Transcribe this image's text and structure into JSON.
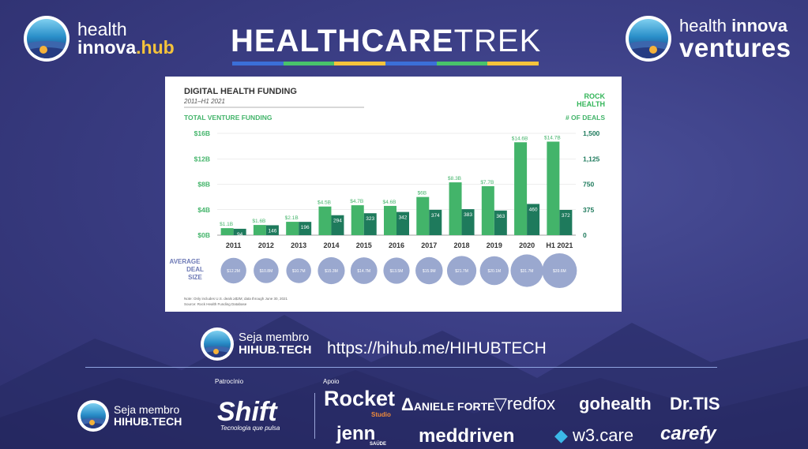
{
  "header": {
    "left_logo": {
      "line1": "health",
      "line2_a": "innova",
      "line2_b": ".hub"
    },
    "title_bold": "HEALTHCARE",
    "title_light": "TREK",
    "title_bar_colors": [
      "#3b6fd8",
      "#48c36b",
      "#f5c33b",
      "#3b6fd8",
      "#48c36b",
      "#f5c33b"
    ],
    "right_logo": {
      "line1_a": "health ",
      "line1_b": "innova",
      "line2": "ventures"
    }
  },
  "chart_data": {
    "type": "bar",
    "title": "DIGITAL HEALTH FUNDING",
    "subtitle": "2011–H1 2021",
    "brand": [
      "ROCK",
      "HEALTH"
    ],
    "left_axis_label": "TOTAL VENTURE FUNDING",
    "right_axis_label": "# OF DEALS",
    "categories": [
      "2011",
      "2012",
      "2013",
      "2014",
      "2015",
      "2016",
      "2017",
      "2018",
      "2019",
      "2020",
      "H1 2021"
    ],
    "series": [
      {
        "name": "Total venture funding",
        "values": [
          1.1,
          1.6,
          2.1,
          4.5,
          4.7,
          4.6,
          6.0,
          8.3,
          7.7,
          14.6,
          14.7
        ],
        "labels": [
          "$1.1B",
          "$1.6B",
          "$2.1B",
          "$4.5B",
          "$4.7B",
          "$4.6B",
          "$6B",
          "$8.3B",
          "$7.7B",
          "$14.6B",
          "$14.7B"
        ],
        "color": "#43b46a"
      },
      {
        "name": "# of deals",
        "values": [
          94,
          146,
          196,
          294,
          323,
          342,
          374,
          383,
          363,
          460,
          372
        ],
        "color": "#1e7a5c"
      }
    ],
    "left_ticks": [
      "$0B",
      "$4B",
      "$8B",
      "$12B",
      "$16B"
    ],
    "right_ticks": [
      "0",
      "375",
      "750",
      "1,125",
      "1,500"
    ],
    "ylim_left": [
      0,
      16
    ],
    "ylim_right": [
      0,
      1500
    ],
    "avg_label": [
      "AVERAGE",
      "DEAL",
      "SIZE"
    ],
    "avg_deal_size": {
      "values": [
        12.2,
        10.8,
        10.7,
        15.3,
        14.7,
        13.5,
        15.9,
        21.7,
        20.1,
        31.7,
        39.6
      ],
      "labels": [
        "$12.2M",
        "$10.8M",
        "$10.7M",
        "$15.3M",
        "$14.7M",
        "$13.5M",
        "$15.9M",
        "$21.7M",
        "$20.1M",
        "$31.7M",
        "$39.6M"
      ],
      "color": "#9aa8cf"
    },
    "notes": [
      "Note: Only includes U.S. deals ≥$2M; data through June 30, 2021",
      "Source: Rock Health Funding Database"
    ]
  },
  "member": {
    "line1": "Seja membro",
    "line2": "HIHUB.TECH",
    "url": "https://hihub.me/HIHUBTECH"
  },
  "footer": {
    "patrocinio_label": "Patrocínio",
    "apoio_label": "Apoio",
    "shift_name": "Shift",
    "shift_tagline": "Tecnologia que pulsa",
    "sponsors": [
      "Rocket",
      "ANIELE FORTE",
      "redfox",
      "gohealth",
      "Dr.TIS",
      "jenn",
      "meddriven",
      "w3.care",
      "carefy"
    ],
    "rocket_sub": "Studio",
    "jenn_sub": "SAÚDE"
  }
}
